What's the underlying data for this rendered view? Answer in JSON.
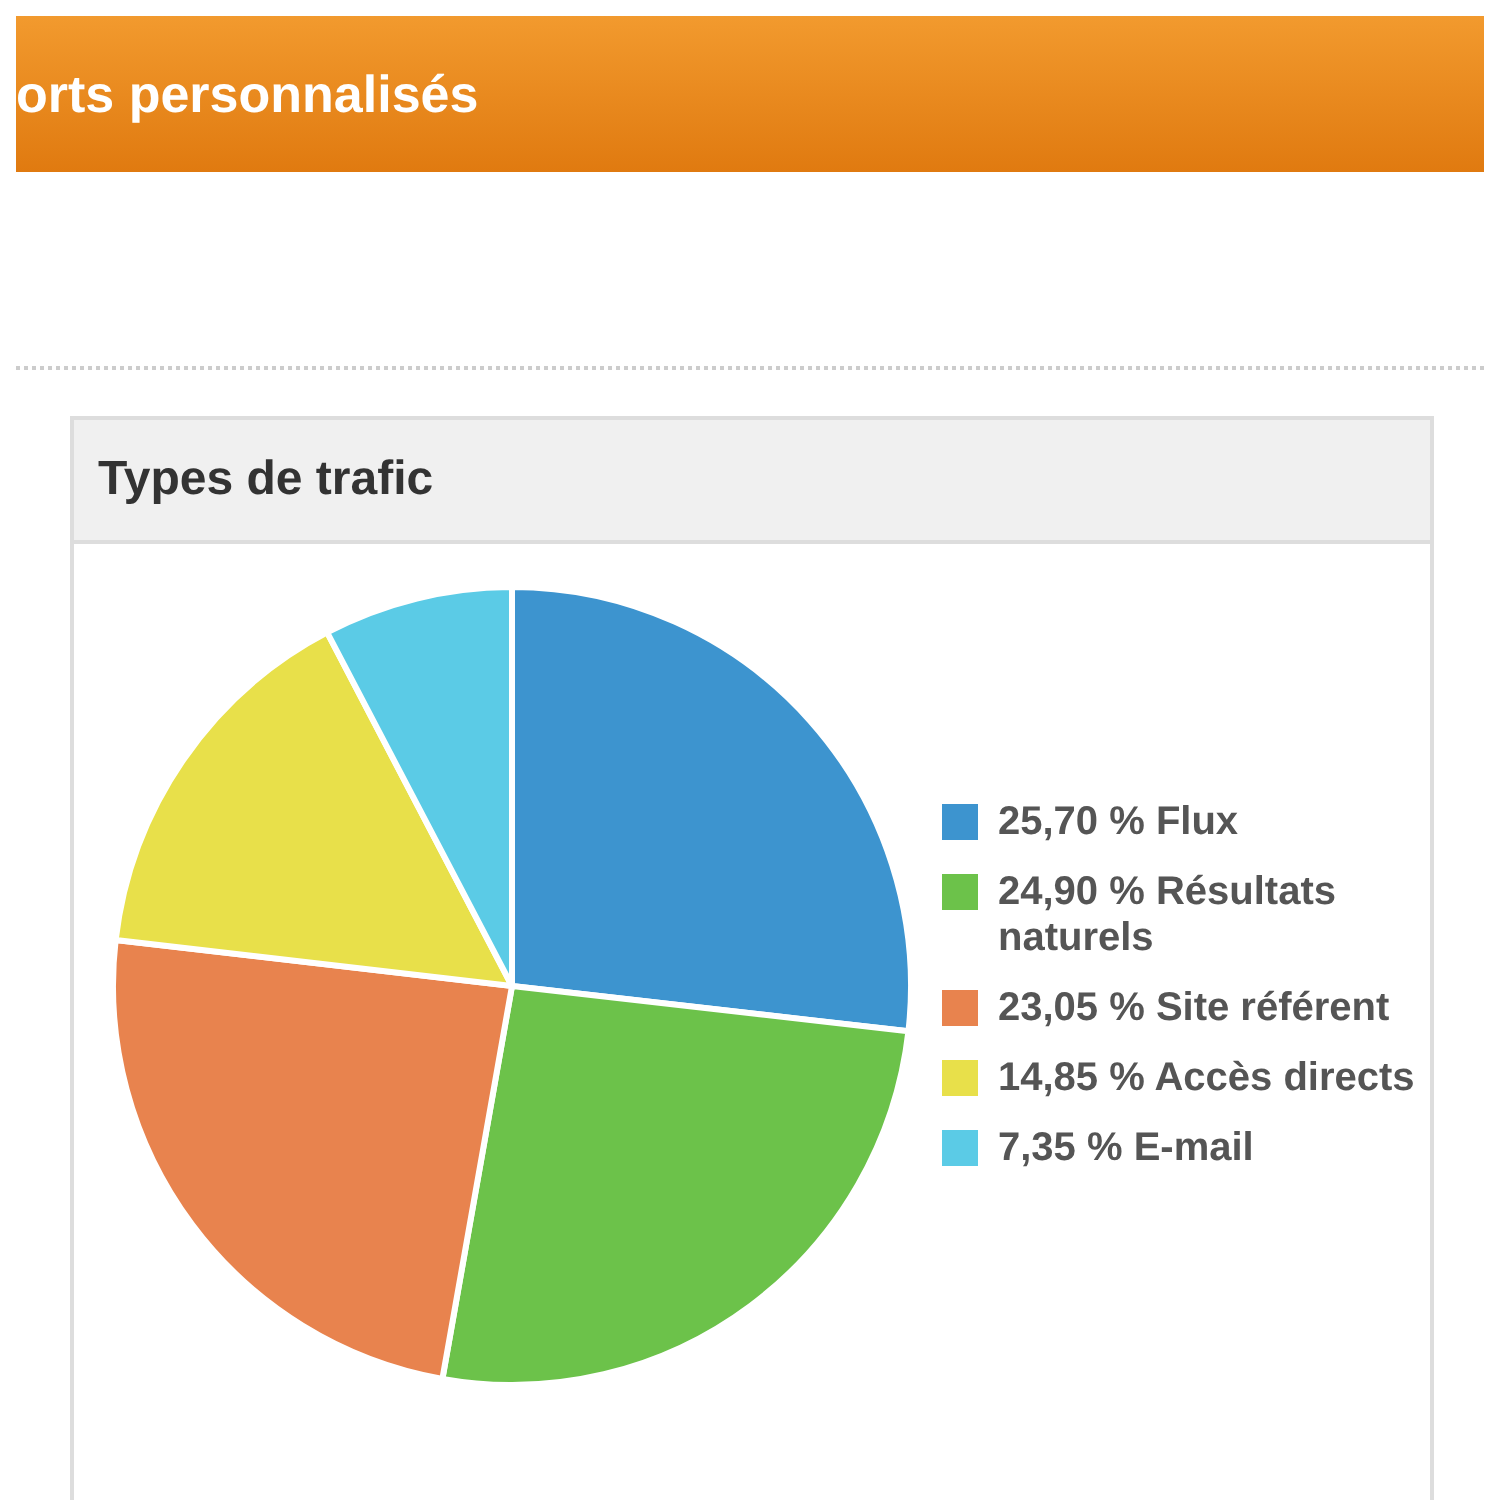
{
  "chart_data": {
    "type": "pie",
    "title": "Types de trafic",
    "annotations": [
      "orts personnalisés"
    ],
    "categories": [
      "Flux",
      "Résultats naturels",
      "Site référent",
      "Accès directs",
      "E-mail"
    ],
    "values": [
      25.7,
      24.9,
      23.05,
      14.85,
      7.35
    ],
    "value_labels": [
      "25,70 %",
      "24,90 %",
      "23,05 %",
      "14,85 %",
      "7,35 %"
    ],
    "colors": [
      "#3d94cf",
      "#6cc24a",
      "#e8834e",
      "#e8e04a",
      "#5bcbe6"
    ],
    "legend": "right"
  }
}
